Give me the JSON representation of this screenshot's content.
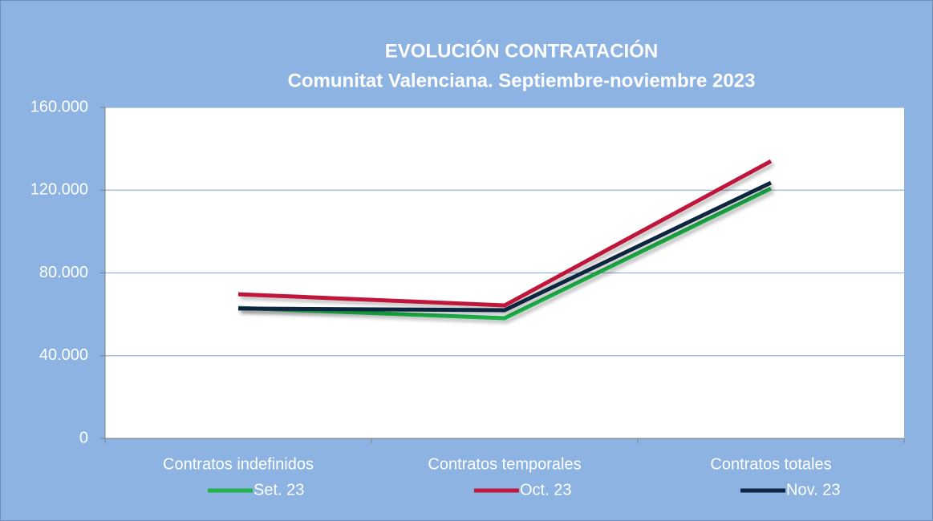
{
  "chart_data": {
    "type": "line",
    "title": "EVOLUCIÓN CONTRATACIÓN",
    "subtitle": "Comunitat Valenciana. Septiembre-noviembre 2023",
    "categories": [
      "Contratos indefinidos",
      "Contratos temporales",
      "Contratos totales"
    ],
    "series": [
      {
        "name": "Set. 23",
        "color": "#1fb34a",
        "values": [
          63100,
          58100,
          120800
        ]
      },
      {
        "name": "Oct. 23",
        "color": "#c0173a",
        "values": [
          69700,
          64300,
          134000
        ]
      },
      {
        "name": "Nov. 23",
        "color": "#0f2640",
        "values": [
          62800,
          62000,
          123600
        ]
      }
    ],
    "ylim": [
      0,
      160000
    ],
    "yticks": [
      0,
      {
        "value": 40000,
        "label": "40.000"
      },
      {
        "value": 80000,
        "label": "80.000"
      },
      {
        "value": 120000,
        "label": "120.000"
      },
      {
        "value": 160000,
        "label": "160.000"
      }
    ],
    "grid": true,
    "legend": "bottom"
  }
}
